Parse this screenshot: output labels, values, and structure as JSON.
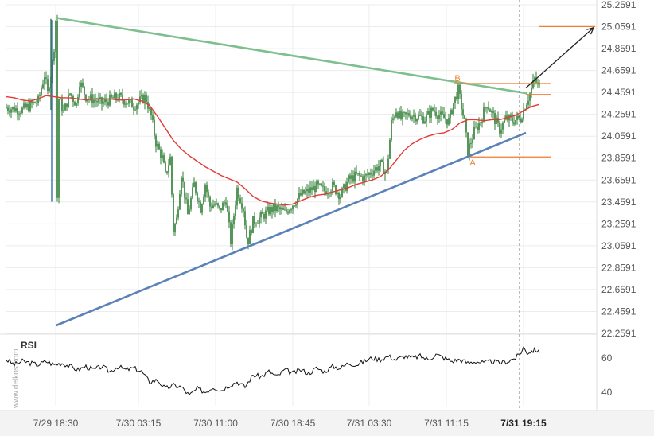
{
  "watermark": "www.delkos.com",
  "chart_data": [
    {
      "type": "candlestick",
      "ylim": [
        22.2591,
        25.2591
      ],
      "y_ticks": [
        "25.2591",
        "25.0591",
        "24.8591",
        "24.6591",
        "24.4591",
        "24.2591",
        "24.0591",
        "23.8591",
        "23.6591",
        "23.4591",
        "23.2591",
        "23.0591",
        "22.8591",
        "22.6591",
        "22.4591",
        "22.2591"
      ],
      "x_ticks": [
        "7/29 18:30",
        "7/30 03:15",
        "7/30 11:00",
        "7/30 18:45",
        "7/31 03:30",
        "7/31 11:15",
        "7/31 19:15"
      ],
      "last_tick": "7/31 19:15",
      "moving_average": [
        [
          0,
          24.42
        ],
        [
          10,
          24.41
        ],
        [
          20,
          24.39
        ],
        [
          30,
          24.38
        ],
        [
          40,
          24.4
        ],
        [
          50,
          24.43
        ],
        [
          60,
          24.42
        ],
        [
          70,
          24.41
        ],
        [
          80,
          24.41
        ],
        [
          90,
          24.4
        ],
        [
          100,
          24.39
        ],
        [
          110,
          24.4
        ],
        [
          120,
          24.4
        ],
        [
          130,
          24.4
        ],
        [
          140,
          24.39
        ],
        [
          150,
          24.39
        ],
        [
          160,
          24.4
        ],
        [
          170,
          24.38
        ],
        [
          180,
          24.34
        ],
        [
          190,
          24.24
        ],
        [
          200,
          24.13
        ],
        [
          210,
          24.02
        ],
        [
          220,
          23.94
        ],
        [
          230,
          23.88
        ],
        [
          240,
          23.83
        ],
        [
          250,
          23.78
        ],
        [
          260,
          23.74
        ],
        [
          270,
          23.7
        ],
        [
          280,
          23.67
        ],
        [
          290,
          23.64
        ],
        [
          300,
          23.58
        ],
        [
          310,
          23.51
        ],
        [
          320,
          23.47
        ],
        [
          330,
          23.45
        ],
        [
          340,
          23.44
        ],
        [
          350,
          23.43
        ],
        [
          360,
          23.44
        ],
        [
          370,
          23.47
        ],
        [
          380,
          23.5
        ],
        [
          390,
          23.52
        ],
        [
          400,
          23.53
        ],
        [
          410,
          23.55
        ],
        [
          420,
          23.57
        ],
        [
          430,
          23.59
        ],
        [
          440,
          23.62
        ],
        [
          450,
          23.64
        ],
        [
          460,
          23.66
        ],
        [
          470,
          23.69
        ],
        [
          480,
          23.75
        ],
        [
          490,
          23.84
        ],
        [
          500,
          23.93
        ],
        [
          510,
          23.99
        ],
        [
          520,
          24.03
        ],
        [
          530,
          24.06
        ],
        [
          540,
          24.08
        ],
        [
          550,
          24.09
        ],
        [
          560,
          24.12
        ],
        [
          570,
          24.18
        ],
        [
          580,
          24.21
        ],
        [
          590,
          24.21
        ],
        [
          600,
          24.2
        ],
        [
          610,
          24.21
        ],
        [
          620,
          24.21
        ],
        [
          630,
          24.23
        ],
        [
          640,
          24.25
        ],
        [
          650,
          24.29
        ],
        [
          660,
          24.33
        ],
        [
          670,
          24.35
        ]
      ],
      "triangle_upper": {
        "from": [
          62,
          25.14
        ],
        "to": [
          655,
          24.45
        ]
      },
      "triangle_lower": {
        "from": [
          62,
          22.33
        ],
        "to": [
          653,
          24.09
        ]
      },
      "levels": [
        {
          "price": 24.54,
          "x_start": 563,
          "x_end": 685
        },
        {
          "price": 24.44,
          "x_start": 653,
          "x_end": 685
        },
        {
          "price": 23.87,
          "x_start": 583,
          "x_end": 685
        },
        {
          "price": 25.06,
          "x_start": 670,
          "x_end": 740
        }
      ],
      "point_labels": [
        {
          "label": "A",
          "x": 586,
          "y": 23.79
        },
        {
          "label": "B",
          "x": 567,
          "y": 24.56
        }
      ],
      "projection_arrow": {
        "from": [
          653,
          24.5
        ],
        "to": [
          738,
          25.05
        ]
      },
      "colors": {
        "candles": "#2e7d32",
        "moving_average": "#e53935",
        "upper_line": "#7dbf8e",
        "lower_line": "#5b82b8",
        "levels": "#ef7d2c",
        "arrow": "#222222"
      },
      "seed_series": {
        "start": 24.32,
        "points": [
          [
            0,
            24.32
          ],
          [
            20,
            24.3
          ],
          [
            40,
            24.38
          ],
          [
            48,
            24.62
          ],
          [
            52,
            24.45
          ],
          [
            58,
            24.72
          ],
          [
            60,
            24.88
          ],
          [
            62,
            25.12
          ],
          [
            64,
            23.5
          ],
          [
            66,
            24.4
          ],
          [
            72,
            24.28
          ],
          [
            80,
            24.45
          ],
          [
            88,
            24.35
          ],
          [
            92,
            24.56
          ],
          [
            100,
            24.42
          ],
          [
            120,
            24.36
          ],
          [
            140,
            24.42
          ],
          [
            160,
            24.34
          ],
          [
            175,
            24.42
          ],
          [
            182,
            24.24
          ],
          [
            188,
            24.0
          ],
          [
            196,
            23.86
          ],
          [
            200,
            23.7
          ],
          [
            206,
            23.86
          ],
          [
            210,
            23.2
          ],
          [
            214,
            23.3
          ],
          [
            220,
            23.72
          ],
          [
            228,
            23.34
          ],
          [
            236,
            23.62
          ],
          [
            244,
            23.4
          ],
          [
            250,
            23.62
          ],
          [
            256,
            23.42
          ],
          [
            262,
            23.44
          ],
          [
            268,
            23.38
          ],
          [
            276,
            23.48
          ],
          [
            282,
            23.1
          ],
          [
            290,
            23.58
          ],
          [
            298,
            23.4
          ],
          [
            303,
            23.08
          ],
          [
            310,
            23.28
          ],
          [
            320,
            23.32
          ],
          [
            330,
            23.38
          ],
          [
            340,
            23.4
          ],
          [
            350,
            23.36
          ],
          [
            360,
            23.44
          ],
          [
            370,
            23.52
          ],
          [
            380,
            23.56
          ],
          [
            390,
            23.6
          ],
          [
            400,
            23.56
          ],
          [
            410,
            23.6
          ],
          [
            420,
            23.52
          ],
          [
            430,
            23.66
          ],
          [
            440,
            23.7
          ],
          [
            450,
            23.68
          ],
          [
            460,
            23.74
          ],
          [
            470,
            23.8
          ],
          [
            478,
            23.72
          ],
          [
            484,
            24.18
          ],
          [
            490,
            24.3
          ],
          [
            496,
            24.22
          ],
          [
            506,
            24.26
          ],
          [
            516,
            24.24
          ],
          [
            526,
            24.22
          ],
          [
            536,
            24.3
          ],
          [
            546,
            24.24
          ],
          [
            556,
            24.2
          ],
          [
            562,
            24.36
          ],
          [
            568,
            24.48
          ],
          [
            576,
            24.18
          ],
          [
            580,
            23.92
          ],
          [
            588,
            24.1
          ],
          [
            596,
            24.2
          ],
          [
            604,
            24.36
          ],
          [
            612,
            24.24
          ],
          [
            620,
            24.12
          ],
          [
            628,
            24.22
          ],
          [
            636,
            24.2
          ],
          [
            646,
            24.22
          ],
          [
            652,
            24.34
          ],
          [
            658,
            24.45
          ],
          [
            664,
            24.58
          ],
          [
            670,
            24.5
          ]
        ]
      }
    },
    {
      "type": "line",
      "title": "RSI",
      "ylim": [
        32,
        72
      ],
      "y_ticks": [
        "60",
        "40"
      ],
      "series": [
        {
          "values": [
            [
              0,
              59
            ],
            [
              10,
              56
            ],
            [
              20,
              58
            ],
            [
              30,
              57
            ],
            [
              40,
              56
            ],
            [
              50,
              58
            ],
            [
              60,
              56
            ],
            [
              70,
              57
            ],
            [
              80,
              55
            ],
            [
              90,
              53
            ],
            [
              100,
              55
            ],
            [
              110,
              53
            ],
            [
              120,
              55
            ],
            [
              130,
              52
            ],
            [
              140,
              55
            ],
            [
              150,
              53
            ],
            [
              160,
              54
            ],
            [
              170,
              52
            ],
            [
              180,
              46
            ],
            [
              190,
              47
            ],
            [
              200,
              42
            ],
            [
              210,
              44
            ],
            [
              220,
              43
            ],
            [
              230,
              38
            ],
            [
              240,
              42
            ],
            [
              250,
              40
            ],
            [
              260,
              43
            ],
            [
              270,
              41
            ],
            [
              280,
              44
            ],
            [
              290,
              46
            ],
            [
              300,
              43
            ],
            [
              310,
              50
            ],
            [
              320,
              49
            ],
            [
              330,
              52
            ],
            [
              340,
              49
            ],
            [
              350,
              53
            ],
            [
              360,
              51
            ],
            [
              370,
              53
            ],
            [
              380,
              51
            ],
            [
              390,
              54
            ],
            [
              400,
              52
            ],
            [
              410,
              55
            ],
            [
              420,
              54
            ],
            [
              430,
              57
            ],
            [
              440,
              56
            ],
            [
              450,
              58
            ],
            [
              460,
              60
            ],
            [
              470,
              59
            ],
            [
              480,
              61
            ],
            [
              490,
              59
            ],
            [
              500,
              61
            ],
            [
              510,
              60
            ],
            [
              520,
              61
            ],
            [
              530,
              59
            ],
            [
              540,
              62
            ],
            [
              550,
              60
            ],
            [
              560,
              58
            ],
            [
              570,
              59
            ],
            [
              580,
              57
            ],
            [
              590,
              58
            ],
            [
              600,
              57
            ],
            [
              610,
              58
            ],
            [
              620,
              57
            ],
            [
              630,
              58
            ],
            [
              640,
              60
            ],
            [
              645,
              62
            ],
            [
              650,
              66
            ],
            [
              655,
              63
            ],
            [
              660,
              64
            ],
            [
              665,
              65
            ],
            [
              670,
              63
            ]
          ]
        }
      ]
    }
  ]
}
